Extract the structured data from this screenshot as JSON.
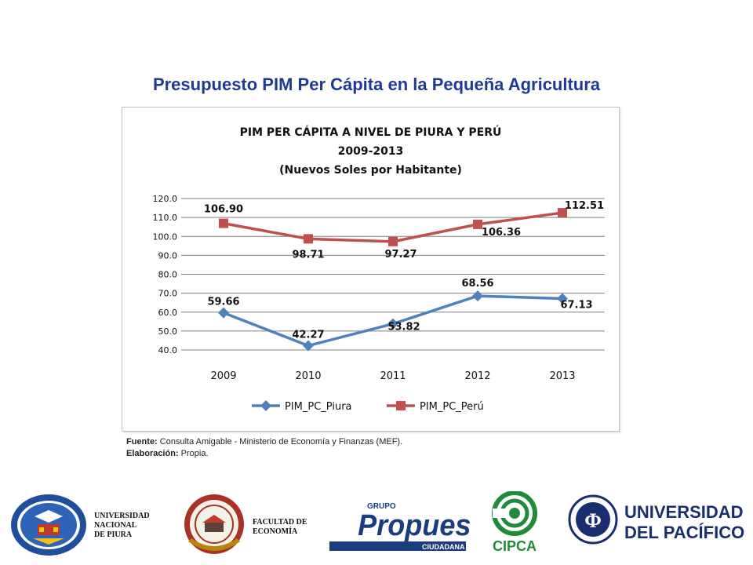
{
  "slide": {
    "title": "Presupuesto PIM Per Cápita en la Pequeña Agricultura"
  },
  "chart_data": {
    "type": "line",
    "title_lines": [
      "PIM PER CÁPITA A NIVEL DE PIURA Y PERÚ",
      "2009-2013",
      "(Nuevos Soles por Habitante)"
    ],
    "categories": [
      "2009",
      "2010",
      "2011",
      "2012",
      "2013"
    ],
    "ylim": [
      40.0,
      120.0
    ],
    "yticks": [
      "40.0",
      "50.0",
      "60.0",
      "70.0",
      "80.0",
      "90.0",
      "100.0",
      "110.0",
      "120.0"
    ],
    "grid": true,
    "legend_position": "bottom",
    "series": [
      {
        "name": "PIM_PC_Piura",
        "values": [
          59.66,
          42.27,
          53.82,
          68.56,
          67.13
        ],
        "labels": [
          "59.66",
          "42.27",
          "53.82",
          "68.56",
          "67.13"
        ],
        "color": "#4f81bd",
        "marker": "diamond"
      },
      {
        "name": "PIM_PC_Perú",
        "values": [
          106.9,
          98.71,
          97.27,
          106.36,
          112.51
        ],
        "labels": [
          "106.90",
          "98.71",
          "97.27",
          "106.36",
          "112.51"
        ],
        "color": "#c0504d",
        "marker": "square"
      }
    ]
  },
  "source": {
    "fuente_label": "Fuente:",
    "fuente_text": " Consulta Amigable - Ministerio de Economía y Finanzas (MEF).",
    "elaboracion_label": "Elaboración:",
    "elaboracion_text": " Propia."
  },
  "logos": {
    "unp": {
      "line1": "UNIVERSIDAD",
      "line2": "NACIONAL",
      "line3": "DE PIURA",
      "ring_text": "UNIVERSIDAD NACIONAL DE PIURA",
      "bottom_text": "PERU"
    },
    "facultad": {
      "line1": "FACULTAD DE",
      "line2": "ECONOMÍA"
    },
    "propuesta": {
      "small": "GRUPO",
      "main": "Propuesta",
      "bar": "CIUDADANA"
    },
    "cipca": {
      "name": "CIPCA"
    },
    "up": {
      "line1": "UNIVERSIDAD",
      "line2": "DEL PACÍFICO",
      "seal": "UNIVERSIDAD DEL PACIFICO",
      "seal_bottom": "LIMA - PERU"
    }
  }
}
